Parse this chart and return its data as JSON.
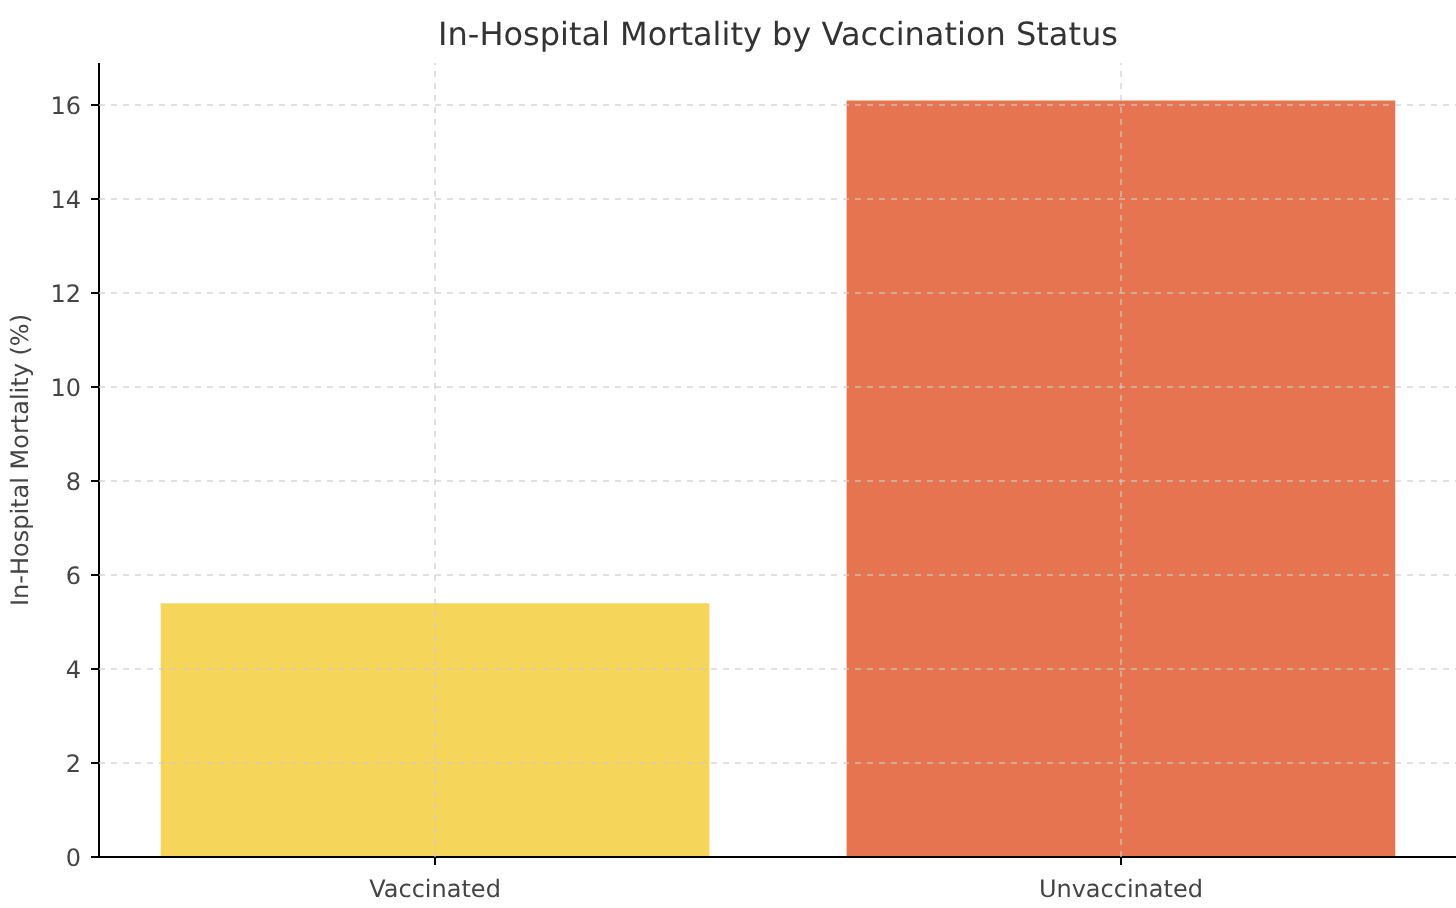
{
  "chart_data": {
    "type": "bar",
    "title": "In-Hospital Mortality by Vaccination Status",
    "ylabel": "In-Hospital Mortality (%)",
    "categories": [
      "Vaccinated",
      "Unvaccinated"
    ],
    "values": [
      5.4,
      16.1
    ],
    "colors": [
      "#f5d65a",
      "#e77450"
    ],
    "ylim": [
      0,
      16.9
    ],
    "yticks": [
      0,
      2,
      4,
      6,
      8,
      10,
      12,
      14,
      16
    ],
    "grid": true
  }
}
